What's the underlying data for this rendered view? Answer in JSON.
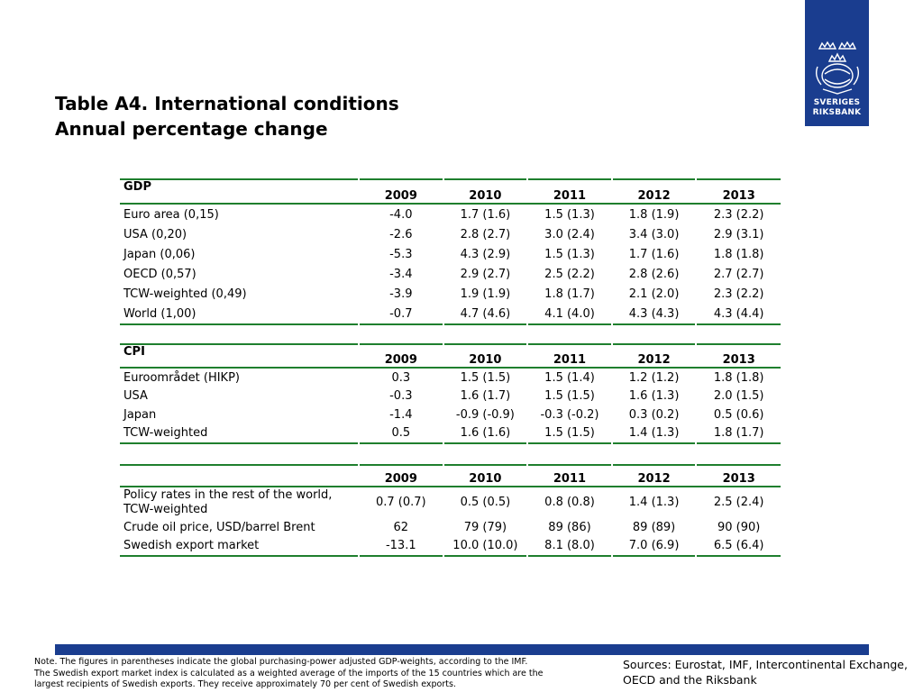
{
  "title": {
    "line1": "Table A4. International conditions",
    "line2": "Annual percentage change"
  },
  "logo": {
    "line1": "SVERIGES",
    "line2": "RIKSBANK",
    "bg_color": "#1a3d8f"
  },
  "accent_color": "#1f7f2e",
  "gdp": {
    "heading": "GDP",
    "years": [
      "2009",
      "2010",
      "2011",
      "2012",
      "2013"
    ],
    "rows": [
      {
        "label": "Euro area (0,15)",
        "values": [
          "-4.0",
          "1.7 (1.6)",
          "1.5 (1.3)",
          "1.8 (1.9)",
          "2.3 (2.2)"
        ]
      },
      {
        "label": "USA (0,20)",
        "values": [
          "-2.6",
          "2.8 (2.7)",
          "3.0 (2.4)",
          "3.4 (3.0)",
          "2.9 (3.1)"
        ]
      },
      {
        "label": "Japan (0,06)",
        "values": [
          "-5.3",
          "4.3 (2.9)",
          "1.5 (1.3)",
          "1.7 (1.6)",
          "1.8 (1.8)"
        ]
      },
      {
        "label": "OECD (0,57)",
        "values": [
          "-3.4",
          "2.9 (2.7)",
          "2.5 (2.2)",
          "2.8 (2.6)",
          "2.7 (2.7)"
        ]
      },
      {
        "label": "TCW-weighted (0,49)",
        "values": [
          "-3.9",
          "1.9 (1.9)",
          "1.8 (1.7)",
          "2.1 (2.0)",
          "2.3 (2.2)"
        ]
      },
      {
        "label": "World (1,00)",
        "values": [
          "-0.7",
          "4.7 (4.6)",
          "4.1 (4.0)",
          "4.3 (4.3)",
          "4.3 (4.4)"
        ]
      }
    ]
  },
  "cpi": {
    "heading": "CPI",
    "years": [
      "2009",
      "2010",
      "2011",
      "2012",
      "2013"
    ],
    "rows": [
      {
        "label": "Euroområdet (HIKP)",
        "values": [
          "0.3",
          "1.5 (1.5)",
          "1.5 (1.4)",
          "1.2 (1.2)",
          "1.8 (1.8)"
        ]
      },
      {
        "label": "USA",
        "values": [
          "-0.3",
          "1.6 (1.7)",
          "1.5 (1.5)",
          "1.6 (1.3)",
          "2.0 (1.5)"
        ]
      },
      {
        "label": "Japan",
        "values": [
          "-1.4",
          "-0.9 (-0.9)",
          "-0.3 (-0.2)",
          "0.3 (0.2)",
          "0.5 (0.6)"
        ]
      },
      {
        "label": "TCW-weighted",
        "values": [
          "0.5",
          "1.6 (1.6)",
          "1.5 (1.5)",
          "1.4 (1.3)",
          "1.8 (1.7)"
        ]
      }
    ]
  },
  "other": {
    "heading": "",
    "years": [
      "2009",
      "2010",
      "2011",
      "2012",
      "2013"
    ],
    "rows": [
      {
        "label": "Policy rates in the rest of the world, TCW-weighted",
        "values": [
          "0.7 (0.7)",
          "0.5 (0.5)",
          "0.8 (0.8)",
          "1.4 (1.3)",
          "2.5 (2.4)"
        ]
      },
      {
        "label": "Crude oil price, USD/barrel Brent",
        "values": [
          "62",
          "79 (79)",
          "89 (86)",
          "89 (89)",
          "90 (90)"
        ]
      },
      {
        "label": "Swedish export market",
        "values": [
          "-13.1",
          "10.0 (10.0)",
          "8.1 (8.0)",
          "7.0 (6.9)",
          "6.5 (6.4)"
        ]
      }
    ]
  },
  "note": {
    "line1": "Note. The figures in parentheses indicate the global purchasing-power adjusted GDP-weights, according to the IMF.",
    "line2": "The Swedish export market index is calculated as a weighted average of the imports of the 15 countries which are the",
    "line3": "largest recipients of Swedish exports. They receive approximately 70 per cent of Swedish exports."
  },
  "sources": {
    "line1": "Sources: Eurostat, IMF, Intercontinental Exchange,",
    "line2": "OECD and the Riksbank"
  }
}
